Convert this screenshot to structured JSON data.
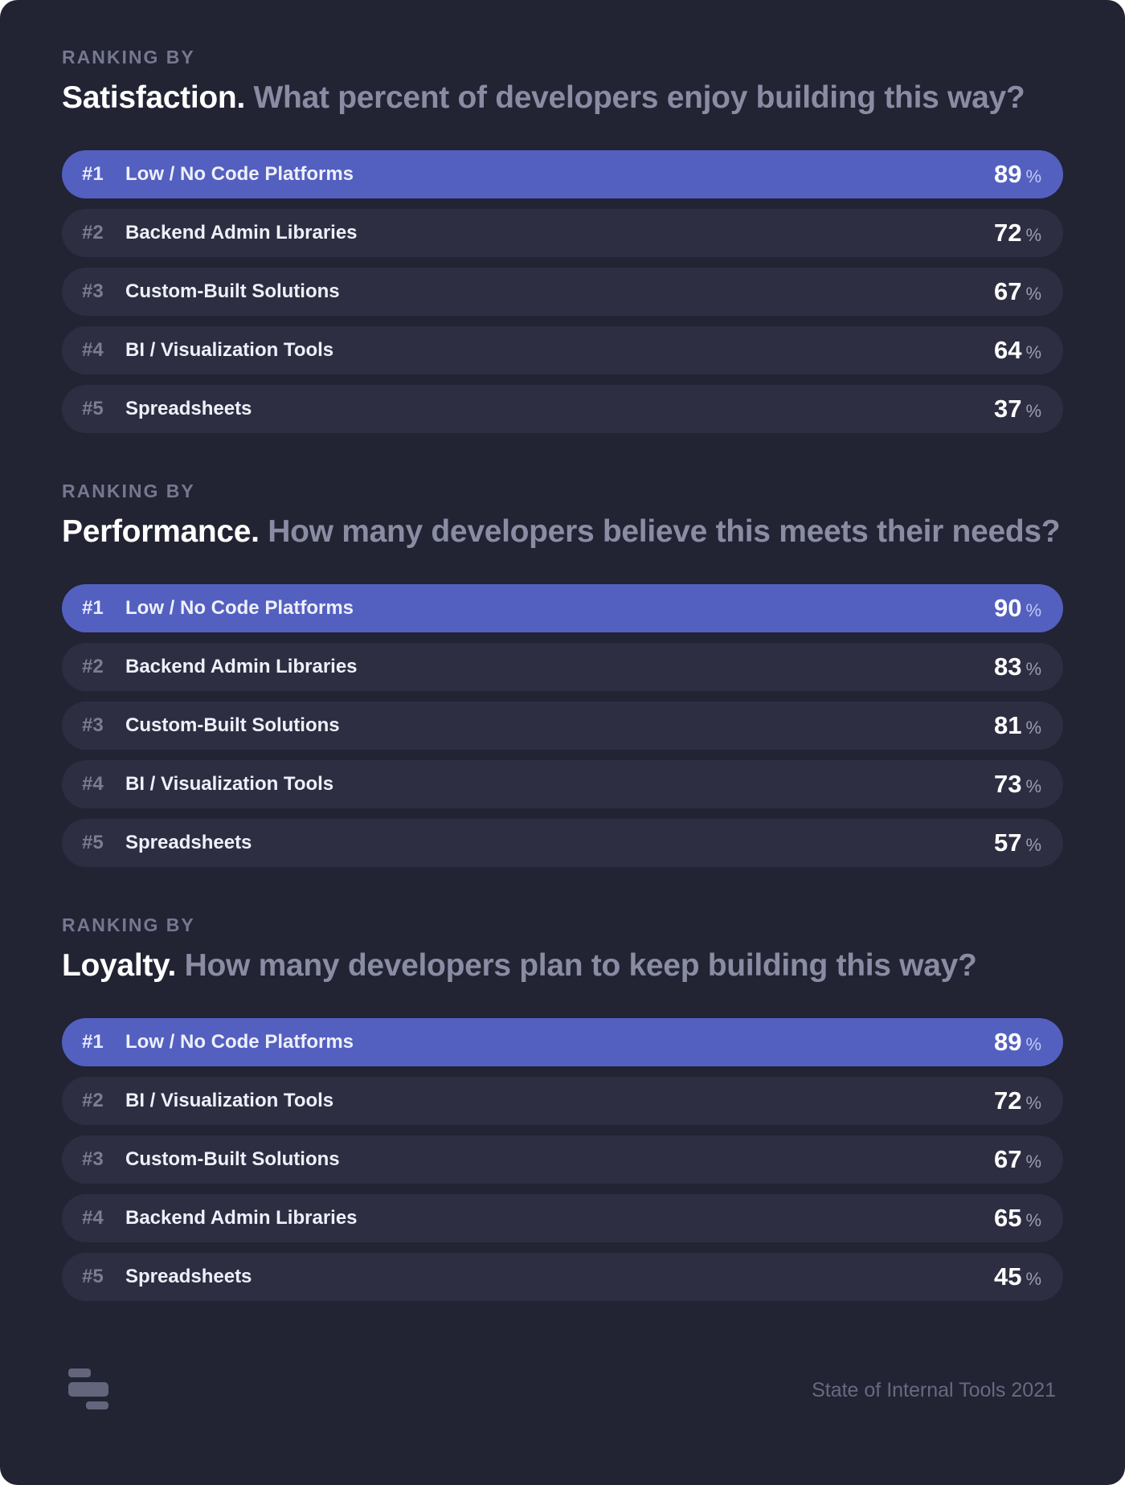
{
  "sections": [
    {
      "kicker": "RANKING BY",
      "metric": "Satisfaction.",
      "question": "What percent of developers enjoy building this way?",
      "rows": [
        {
          "rank": "#1",
          "label": "Low / No Code Platforms",
          "value": "89",
          "unit": "%"
        },
        {
          "rank": "#2",
          "label": "Backend Admin Libraries",
          "value": "72",
          "unit": "%"
        },
        {
          "rank": "#3",
          "label": "Custom-Built Solutions",
          "value": "67",
          "unit": "%"
        },
        {
          "rank": "#4",
          "label": "BI / Visualization Tools",
          "value": "64",
          "unit": "%"
        },
        {
          "rank": "#5",
          "label": "Spreadsheets",
          "value": "37",
          "unit": "%"
        }
      ]
    },
    {
      "kicker": "RANKING BY",
      "metric": "Performance.",
      "question": "How many developers believe this meets their needs?",
      "rows": [
        {
          "rank": "#1",
          "label": "Low / No Code Platforms",
          "value": "90",
          "unit": "%"
        },
        {
          "rank": "#2",
          "label": "Backend Admin Libraries",
          "value": "83",
          "unit": "%"
        },
        {
          "rank": "#3",
          "label": "Custom-Built Solutions",
          "value": "81",
          "unit": "%"
        },
        {
          "rank": "#4",
          "label": "BI / Visualization Tools",
          "value": "73",
          "unit": "%"
        },
        {
          "rank": "#5",
          "label": "Spreadsheets",
          "value": "57",
          "unit": "%"
        }
      ]
    },
    {
      "kicker": "RANKING BY",
      "metric": "Loyalty.",
      "question": "How many developers plan to keep building this way?",
      "rows": [
        {
          "rank": "#1",
          "label": "Low / No Code Platforms",
          "value": "89",
          "unit": "%"
        },
        {
          "rank": "#2",
          "label": "BI / Visualization Tools",
          "value": "72",
          "unit": "%"
        },
        {
          "rank": "#3",
          "label": "Custom-Built Solutions",
          "value": "67",
          "unit": "%"
        },
        {
          "rank": "#4",
          "label": "Backend Admin Libraries",
          "value": "65",
          "unit": "%"
        },
        {
          "rank": "#5",
          "label": "Spreadsheets",
          "value": "45",
          "unit": "%"
        }
      ]
    }
  ],
  "footer": {
    "text": "State of Internal Tools 2021",
    "logo_icon": "retool-logo-icon"
  },
  "colors": {
    "background": "#222333",
    "row": "#2d2e41",
    "highlight": "#5360c0"
  }
}
